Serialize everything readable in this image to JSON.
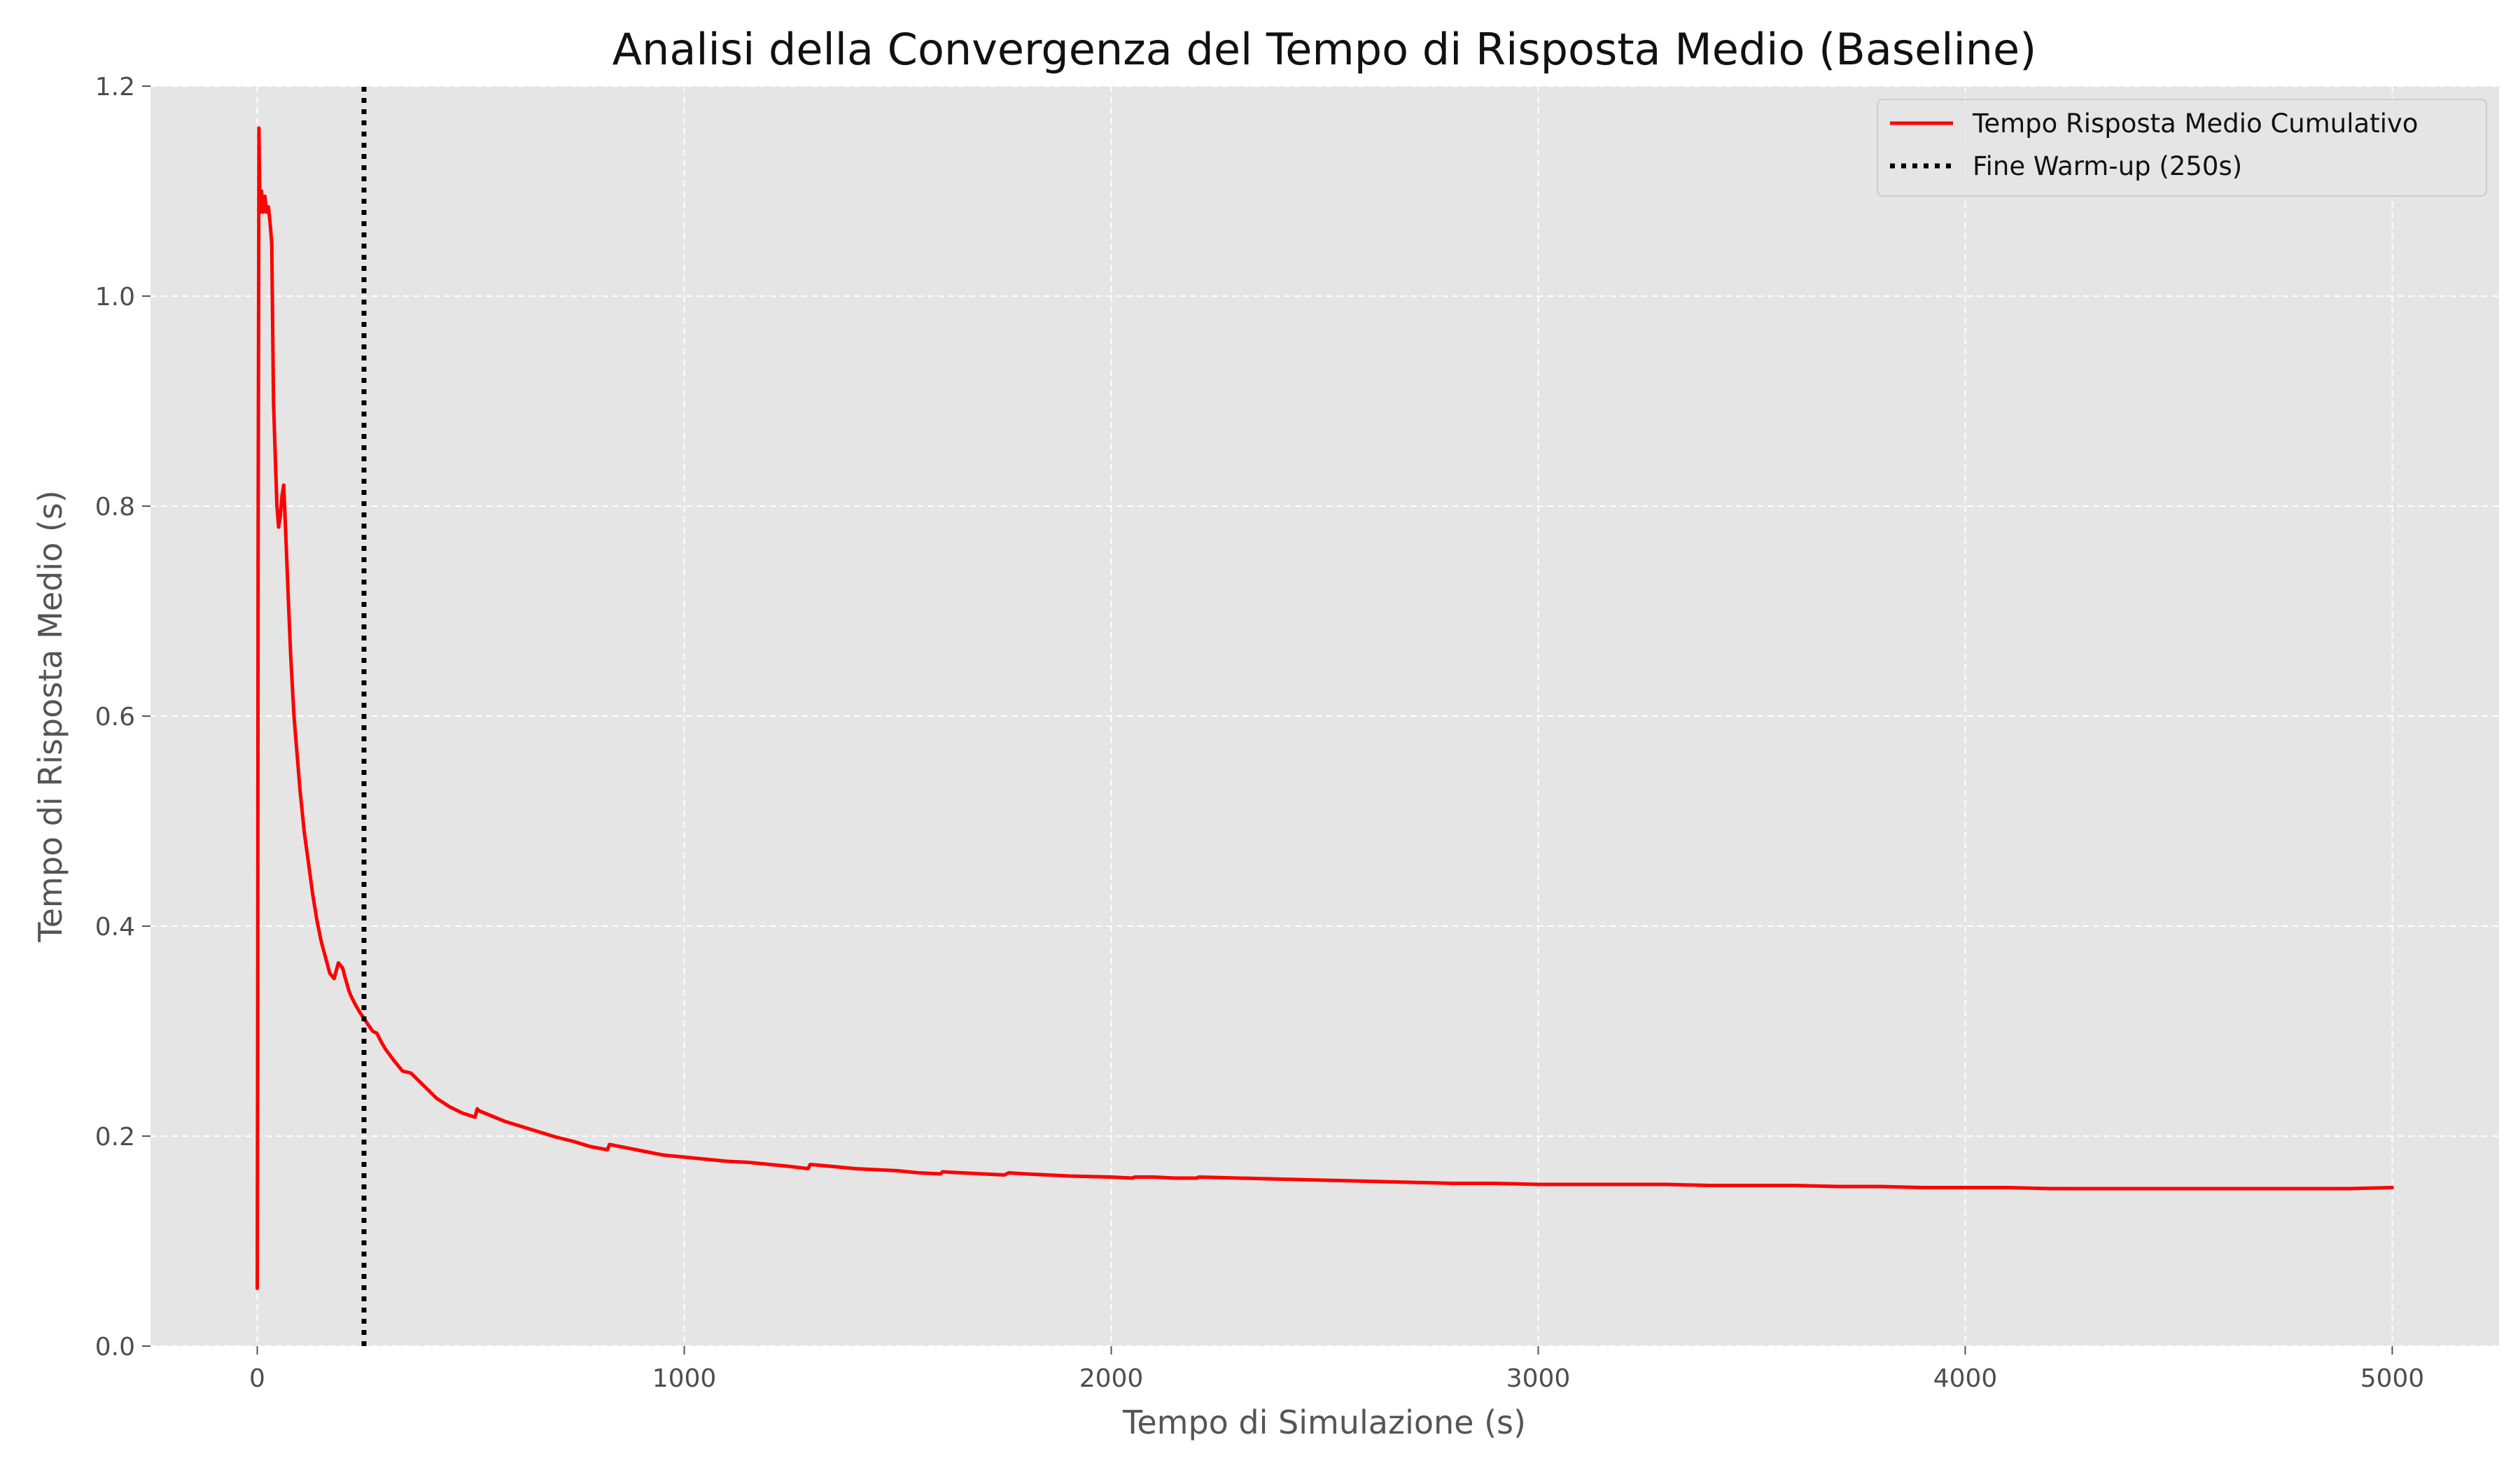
{
  "chart_data": {
    "type": "line",
    "title": "Analisi della Convergenza del Tempo di Risposta Medio (Baseline)",
    "xlabel": "Tempo di Simulazione (s)",
    "ylabel": "Tempo di Risposta Medio (s)",
    "xlim": [
      -250,
      5250
    ],
    "ylim": [
      0.0,
      1.2
    ],
    "x_ticks": [
      0,
      1000,
      2000,
      3000,
      4000,
      5000
    ],
    "x_tick_labels": [
      "0",
      "1000",
      "2000",
      "3000",
      "4000",
      "5000"
    ],
    "y_ticks": [
      0.0,
      0.2,
      0.4,
      0.6,
      0.8,
      1.0,
      1.2
    ],
    "y_tick_labels": [
      "0.0",
      "0.2",
      "0.4",
      "0.6",
      "0.8",
      "1.0",
      "1.2"
    ],
    "grid": true,
    "legend_position": "top-right",
    "series": [
      {
        "name": "Tempo Risposta Medio Cumulativo",
        "color": "#ff0000",
        "style": "solid",
        "x": [
          0,
          1,
          2,
          4,
          6,
          8,
          10,
          14,
          18,
          22,
          26,
          30,
          34,
          38,
          42,
          46,
          50,
          54,
          58,
          62,
          66,
          70,
          74,
          78,
          82,
          86,
          90,
          95,
          100,
          110,
          120,
          130,
          140,
          150,
          160,
          170,
          180,
          190,
          200,
          205,
          210,
          215,
          220,
          230,
          240,
          250,
          260,
          270,
          280,
          290,
          300,
          320,
          340,
          360,
          380,
          400,
          420,
          450,
          480,
          510,
          515,
          520,
          550,
          580,
          620,
          660,
          700,
          740,
          780,
          820,
          825,
          850,
          900,
          950,
          1000,
          1050,
          1100,
          1150,
          1200,
          1250,
          1290,
          1295,
          1350,
          1400,
          1450,
          1500,
          1550,
          1600,
          1605,
          1650,
          1700,
          1750,
          1760,
          1800,
          1900,
          2000,
          2050,
          2055,
          2100,
          2150,
          2200,
          2205,
          2300,
          2400,
          2500,
          2600,
          2700,
          2800,
          2900,
          3000,
          3100,
          3200,
          3300,
          3400,
          3500,
          3600,
          3700,
          3800,
          3900,
          4000,
          4100,
          4200,
          4300,
          4400,
          4500,
          4600,
          4700,
          4800,
          4900,
          5000
        ],
        "y": [
          0.055,
          0.3,
          0.75,
          1.16,
          1.09,
          1.08,
          1.1,
          1.08,
          1.095,
          1.08,
          1.085,
          1.07,
          1.05,
          0.9,
          0.85,
          0.8,
          0.78,
          0.79,
          0.81,
          0.82,
          0.78,
          0.74,
          0.7,
          0.66,
          0.63,
          0.6,
          0.58,
          0.555,
          0.53,
          0.49,
          0.46,
          0.43,
          0.405,
          0.385,
          0.37,
          0.355,
          0.35,
          0.365,
          0.36,
          0.352,
          0.345,
          0.338,
          0.333,
          0.325,
          0.318,
          0.312,
          0.306,
          0.3,
          0.298,
          0.29,
          0.283,
          0.272,
          0.262,
          0.26,
          0.252,
          0.244,
          0.236,
          0.228,
          0.222,
          0.218,
          0.226,
          0.224,
          0.219,
          0.214,
          0.209,
          0.204,
          0.199,
          0.195,
          0.19,
          0.187,
          0.192,
          0.19,
          0.186,
          0.182,
          0.18,
          0.178,
          0.176,
          0.175,
          0.173,
          0.171,
          0.169,
          0.173,
          0.171,
          0.169,
          0.168,
          0.167,
          0.165,
          0.164,
          0.166,
          0.165,
          0.164,
          0.163,
          0.165,
          0.164,
          0.162,
          0.161,
          0.16,
          0.161,
          0.161,
          0.16,
          0.16,
          0.161,
          0.16,
          0.159,
          0.158,
          0.157,
          0.156,
          0.155,
          0.155,
          0.154,
          0.154,
          0.154,
          0.154,
          0.153,
          0.153,
          0.153,
          0.152,
          0.152,
          0.151,
          0.151,
          0.151,
          0.15,
          0.15,
          0.15,
          0.15,
          0.15,
          0.15,
          0.15,
          0.15,
          0.151
        ]
      },
      {
        "name": "Fine Warm-up (250s)",
        "color": "#000000",
        "style": "dotted",
        "x": [
          250,
          250
        ],
        "y": [
          0.0,
          1.2
        ]
      }
    ]
  }
}
